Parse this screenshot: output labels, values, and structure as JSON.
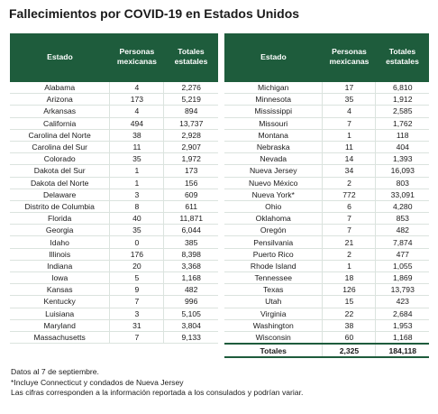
{
  "title": "Fallecimientos por COVID-19 en Estados Unidos",
  "headers": {
    "state": "Estado",
    "mexicans": "Personas mexicanas",
    "totals": "Totales estatales"
  },
  "left_rows": [
    {
      "state": "Alabama",
      "mexicans": "4",
      "total": "2,276"
    },
    {
      "state": "Arizona",
      "mexicans": "173",
      "total": "5,219"
    },
    {
      "state": "Arkansas",
      "mexicans": "4",
      "total": "894"
    },
    {
      "state": "California",
      "mexicans": "494",
      "total": "13,737"
    },
    {
      "state": "Carolina del Norte",
      "mexicans": "38",
      "total": "2,928"
    },
    {
      "state": "Carolina del Sur",
      "mexicans": "11",
      "total": "2,907"
    },
    {
      "state": "Colorado",
      "mexicans": "35",
      "total": "1,972"
    },
    {
      "state": "Dakota del Sur",
      "mexicans": "1",
      "total": "173"
    },
    {
      "state": "Dakota del Norte",
      "mexicans": "1",
      "total": "156"
    },
    {
      "state": "Delaware",
      "mexicans": "3",
      "total": "609"
    },
    {
      "state": "Distrito de Columbia",
      "mexicans": "8",
      "total": "611"
    },
    {
      "state": "Florida",
      "mexicans": "40",
      "total": "11,871"
    },
    {
      "state": "Georgia",
      "mexicans": "35",
      "total": "6,044"
    },
    {
      "state": "Idaho",
      "mexicans": "0",
      "total": "385"
    },
    {
      "state": "Illinois",
      "mexicans": "176",
      "total": "8,398"
    },
    {
      "state": "Indiana",
      "mexicans": "20",
      "total": "3,368"
    },
    {
      "state": "Iowa",
      "mexicans": "5",
      "total": "1,168"
    },
    {
      "state": "Kansas",
      "mexicans": "9",
      "total": "482"
    },
    {
      "state": "Kentucky",
      "mexicans": "7",
      "total": "996"
    },
    {
      "state": "Luisiana",
      "mexicans": "3",
      "total": "5,105"
    },
    {
      "state": "Maryland",
      "mexicans": "31",
      "total": "3,804"
    },
    {
      "state": "Massachusetts",
      "mexicans": "7",
      "total": "9,133"
    }
  ],
  "right_rows": [
    {
      "state": "Michigan",
      "mexicans": "17",
      "total": "6,810"
    },
    {
      "state": "Minnesota",
      "mexicans": "35",
      "total": "1,912"
    },
    {
      "state": "Mississippi",
      "mexicans": "4",
      "total": "2,585"
    },
    {
      "state": "Missouri",
      "mexicans": "7",
      "total": "1,762"
    },
    {
      "state": "Montana",
      "mexicans": "1",
      "total": "118"
    },
    {
      "state": "Nebraska",
      "mexicans": "11",
      "total": "404"
    },
    {
      "state": "Nevada",
      "mexicans": "14",
      "total": "1,393"
    },
    {
      "state": "Nueva Jersey",
      "mexicans": "34",
      "total": "16,093"
    },
    {
      "state": "Nuevo México",
      "mexicans": "2",
      "total": "803"
    },
    {
      "state": "Nueva York*",
      "mexicans": "772",
      "total": "33,091"
    },
    {
      "state": "Ohio",
      "mexicans": "6",
      "total": "4,280"
    },
    {
      "state": "Oklahoma",
      "mexicans": "7",
      "total": "853"
    },
    {
      "state": "Oregón",
      "mexicans": "7",
      "total": "482"
    },
    {
      "state": "Pensilvania",
      "mexicans": "21",
      "total": "7,874"
    },
    {
      "state": "Puerto Rico",
      "mexicans": "2",
      "total": "477"
    },
    {
      "state": "Rhode Island",
      "mexicans": "1",
      "total": "1,055"
    },
    {
      "state": "Tennessee",
      "mexicans": "18",
      "total": "1,869"
    },
    {
      "state": "Texas",
      "mexicans": "126",
      "total": "13,793"
    },
    {
      "state": "Utah",
      "mexicans": "15",
      "total": "423"
    },
    {
      "state": "Virginia",
      "mexicans": "22",
      "total": "2,684"
    },
    {
      "state": "Washington",
      "mexicans": "38",
      "total": "1,953"
    },
    {
      "state": "Wisconsin",
      "mexicans": "60",
      "total": "1,168"
    }
  ],
  "totals_row": {
    "label": "Totales",
    "mexicans": "2,325",
    "total": "184,118"
  },
  "notes": [
    "Datos al 7 de septiembre.",
    "*Incluye Connecticut y condados de Nueva Jersey",
    "Las cifras corresponden a la información reportada a los consulados y podrían variar."
  ],
  "colors": {
    "header_bg": "#1e5c3c",
    "header_text": "#ffffff"
  }
}
